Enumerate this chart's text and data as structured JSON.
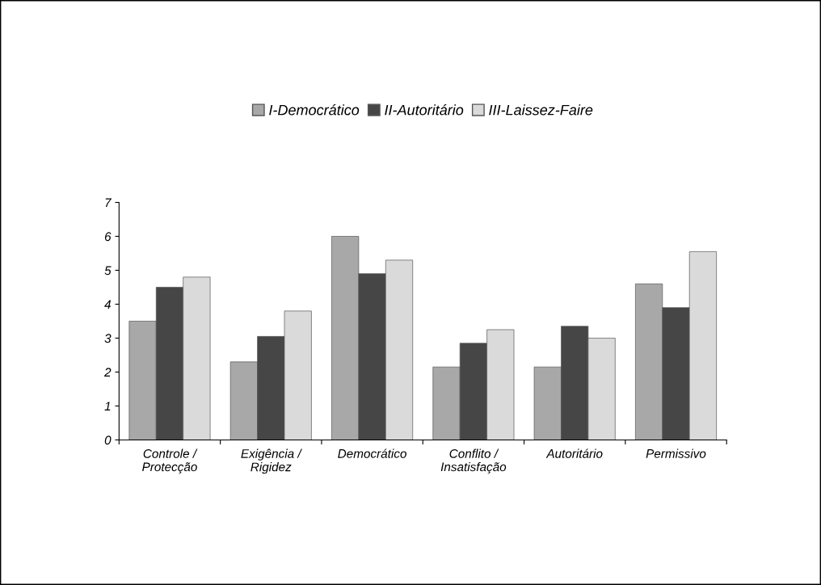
{
  "chart_data": {
    "type": "bar",
    "categories": [
      "Controle /\nProtecção",
      "Exigência /\nRigidez",
      "Democrático",
      "Conflito /\nInsatisfação",
      "Autoritário",
      "Permissivo"
    ],
    "series": [
      {
        "name": "I-Democrático",
        "color": "#a8a8a8",
        "values": [
          3.5,
          2.3,
          6.0,
          2.15,
          2.15,
          4.6
        ]
      },
      {
        "name": "II-Autoritário",
        "color": "#464646",
        "values": [
          4.5,
          3.05,
          4.9,
          2.85,
          3.35,
          3.9
        ]
      },
      {
        "name": "III-Laissez-Faire",
        "color": "#dadada",
        "values": [
          4.8,
          3.8,
          5.3,
          3.25,
          3.0,
          5.55
        ]
      }
    ],
    "ylim": [
      0,
      7
    ],
    "yticks": [
      0,
      1,
      2,
      3,
      4,
      5,
      6,
      7
    ],
    "grid": false,
    "legend": "top"
  }
}
